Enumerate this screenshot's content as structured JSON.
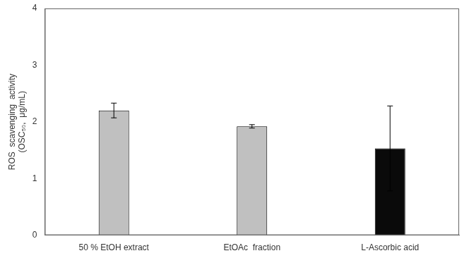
{
  "chart_data": {
    "type": "bar",
    "ylabel": "ROS  scavenging  activity\n(OSC₅₀,  μg/mL)",
    "categories": [
      "50 % EtOH extract",
      "EtOAc  fraction",
      "L-Ascorbic acid"
    ],
    "values": [
      2.2,
      1.92,
      1.53
    ],
    "errors": [
      0.13,
      0.03,
      0.75
    ],
    "colors": [
      "#c0c0c0",
      "#c0c0c0",
      "#0a0a0a"
    ],
    "ylim": [
      0,
      4
    ],
    "yticks": [
      0,
      1,
      2,
      3,
      4
    ],
    "grid": false
  }
}
